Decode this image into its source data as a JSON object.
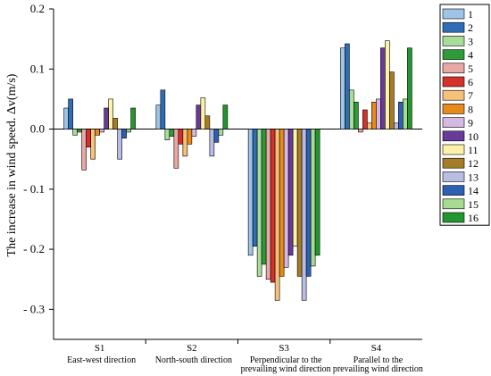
{
  "chart_data": {
    "type": "bar",
    "ylabel": "The increase in wind speed. Δv(m/s)",
    "ylim": [
      -0.35,
      0.2
    ],
    "yticks": [
      -0.3,
      -0.2,
      -0.1,
      0.0,
      0.1,
      0.2
    ],
    "ytick_labels": [
      "- 0.3",
      "- 0.2",
      "- 0.1",
      "0.0",
      "0.1",
      "0.2"
    ],
    "grid": false,
    "legend_position": "right",
    "categories": [
      "S1",
      "S2",
      "S3",
      "S4"
    ],
    "category_sublabels": [
      [
        "East-west direction"
      ],
      [
        "North-south direction"
      ],
      [
        "Perpendicular to the",
        "prevailing wind direction"
      ],
      [
        "Parallel to the",
        "prevailing wind direction"
      ]
    ],
    "series": [
      {
        "name": "1",
        "color": "#9ec5e6",
        "values": [
          0.035,
          0.04,
          -0.21,
          0.135
        ]
      },
      {
        "name": "2",
        "color": "#2f6db5",
        "values": [
          0.05,
          0.065,
          -0.195,
          0.142
        ]
      },
      {
        "name": "3",
        "color": "#a8dc98",
        "values": [
          -0.01,
          -0.018,
          -0.245,
          0.065
        ]
      },
      {
        "name": "4",
        "color": "#2e9a3a",
        "values": [
          -0.005,
          -0.012,
          -0.225,
          0.045
        ]
      },
      {
        "name": "5",
        "color": "#e8a8a5",
        "values": [
          -0.068,
          -0.065,
          -0.25,
          -0.005
        ]
      },
      {
        "name": "6",
        "color": "#d6302b",
        "values": [
          -0.03,
          -0.025,
          -0.255,
          0.032
        ]
      },
      {
        "name": "7",
        "color": "#f6c27a",
        "values": [
          -0.05,
          -0.045,
          -0.285,
          0.01
        ]
      },
      {
        "name": "8",
        "color": "#e88a1a",
        "values": [
          -0.01,
          -0.025,
          -0.245,
          0.045
        ]
      },
      {
        "name": "9",
        "color": "#d6b9e3",
        "values": [
          -0.005,
          -0.012,
          -0.23,
          0.05
        ]
      },
      {
        "name": "10",
        "color": "#6a3a9a",
        "values": [
          0.035,
          0.04,
          -0.21,
          0.135
        ]
      },
      {
        "name": "11",
        "color": "#fcf3a8",
        "values": [
          0.05,
          0.052,
          -0.195,
          0.147
        ]
      },
      {
        "name": "12",
        "color": "#a77c27",
        "values": [
          0.018,
          0.022,
          -0.245,
          0.095
        ]
      },
      {
        "name": "13",
        "color": "#b9bde3",
        "values": [
          -0.05,
          -0.045,
          -0.285,
          0.01
        ]
      },
      {
        "name": "14",
        "color": "#2d5fb3",
        "values": [
          -0.015,
          -0.022,
          -0.245,
          0.045
        ]
      },
      {
        "name": "15",
        "color": "#a5dc8f",
        "values": [
          -0.005,
          -0.01,
          -0.228,
          0.05
        ]
      },
      {
        "name": "16",
        "color": "#24962f",
        "values": [
          0.035,
          0.04,
          -0.21,
          0.135
        ]
      }
    ]
  }
}
